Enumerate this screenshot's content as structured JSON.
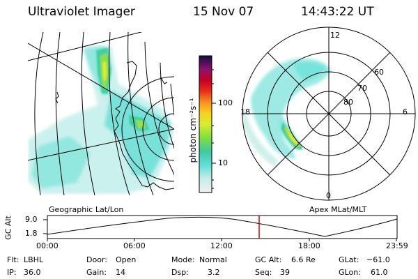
{
  "header": {
    "instrument": "Ultraviolet Imager",
    "date": "15 Nov 07",
    "time": "14:43:22 UT"
  },
  "colorbar": {
    "unit_label": "photon cm⁻²s⁻¹",
    "ticks": [
      "100",
      "10"
    ]
  },
  "map_labels": {
    "geographic": "Geographic Lat/Lon",
    "apex": "Apex MLat/MLT"
  },
  "polar": {
    "mlt_labels": {
      "top": "12",
      "left": "18",
      "right": "6",
      "bottom": "0"
    },
    "lat_labels": [
      "60",
      "70",
      "80"
    ]
  },
  "altitude_plot": {
    "ylabel": "GC Alt",
    "yticks": [
      "9.0",
      "1.8"
    ],
    "xticks": [
      "00:00",
      "06:00",
      "12:00",
      "18:00",
      "23:59"
    ],
    "current_marker_color": "#e00000"
  },
  "status": {
    "flt_label": "Flt:",
    "flt_value": "LBHL",
    "ip_label": "IP:",
    "ip_value": "36.0",
    "door_label": "Door:",
    "door_value": "Open",
    "gain_label": "Gain:",
    "gain_value": "14",
    "mode_label": "Mode:",
    "mode_value": "Normal",
    "dsp_label": "Dsp:",
    "dsp_value": "3.2",
    "gcalt_label": "GC Alt:",
    "gcalt_value": "6.6 Re",
    "seq_label": "Seq:",
    "seq_value": "39",
    "glat_label": "GLat:",
    "glat_value": "−61.0",
    "glon_label": "GLon:",
    "glon_value": "61.0"
  }
}
